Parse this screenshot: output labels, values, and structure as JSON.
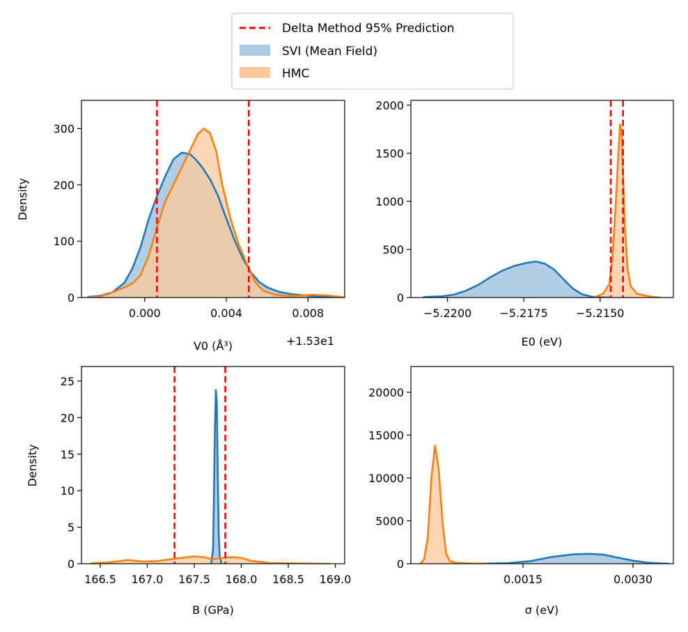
{
  "legend": {
    "placement": "top-center",
    "entries": [
      {
        "label": "Delta Method 95% Prediction",
        "color": "#ff0000",
        "style": "dashed-line"
      },
      {
        "label": "SVI (Mean Field)",
        "color": "#1f77b4",
        "style": "patch"
      },
      {
        "label": "HMC",
        "color": "#ff7f0e",
        "style": "patch"
      }
    ]
  },
  "colors": {
    "svi_line": "#1f77b4",
    "svi_fill": "#a9c9e3",
    "hmc_line": "#ff7f0e",
    "hmc_fill": "#ffc99b",
    "overlap_fill": "#c9ac8c",
    "delta": "#ff0000"
  },
  "chart_data": [
    {
      "type": "area",
      "id": "v0",
      "xlabel": "V0 (Å³)",
      "ylabel": "Density",
      "offset_text": "+1.53e1",
      "xlim": [
        -0.0031,
        0.0098
      ],
      "ylim": [
        0,
        350
      ],
      "xticks": [
        0.0,
        0.004,
        0.008
      ],
      "xtick_labels": [
        "0.000",
        "0.004",
        "0.008"
      ],
      "yticks": [
        0,
        100,
        200,
        300
      ],
      "ytick_labels": [
        "0",
        "100",
        "200",
        "300"
      ],
      "delta_lines": [
        0.0006,
        0.0051
      ],
      "series": [
        {
          "name": "SVI (Mean Field)",
          "x": [
            -0.0028,
            -0.0022,
            -0.0016,
            -0.001,
            -0.0006,
            -0.0002,
            0.0002,
            0.0006,
            0.001,
            0.0014,
            0.0018,
            0.0022,
            0.0025,
            0.0028,
            0.0032,
            0.0036,
            0.004,
            0.0044,
            0.0048,
            0.0052,
            0.0056,
            0.006,
            0.0066,
            0.0072,
            0.0078,
            0.0084,
            0.009,
            0.0096
          ],
          "y": [
            1,
            3,
            9,
            26,
            52,
            90,
            140,
            180,
            215,
            245,
            257,
            255,
            245,
            232,
            210,
            180,
            140,
            102,
            70,
            45,
            28,
            18,
            10,
            6,
            4,
            2,
            1,
            0
          ]
        },
        {
          "name": "HMC",
          "x": [
            -0.0028,
            -0.0022,
            -0.0018,
            -0.0014,
            -0.001,
            -0.0006,
            -0.0002,
            0.0002,
            0.0006,
            0.001,
            0.0014,
            0.0018,
            0.0022,
            0.0026,
            0.0029,
            0.0032,
            0.0035,
            0.0038,
            0.0042,
            0.0046,
            0.005,
            0.0054,
            0.0058,
            0.0064,
            0.007,
            0.0076,
            0.0082,
            0.0088,
            0.0094,
            0.0098
          ],
          "y": [
            0,
            2,
            6,
            12,
            18,
            25,
            40,
            75,
            125,
            170,
            200,
            230,
            260,
            290,
            300,
            292,
            260,
            200,
            140,
            95,
            60,
            28,
            12,
            5,
            3,
            3,
            5,
            4,
            2,
            0
          ]
        }
      ]
    },
    {
      "type": "area",
      "id": "e0",
      "xlabel": "E0 (eV)",
      "ylabel": "",
      "xlim": [
        -5.2212,
        -5.2126
      ],
      "ylim": [
        0,
        2050
      ],
      "xticks": [
        -5.22,
        -5.2175,
        -5.215
      ],
      "xtick_labels": [
        "−5.2200",
        "−5.2175",
        "−5.2150"
      ],
      "yticks": [
        0,
        500,
        1000,
        1500,
        2000
      ],
      "ytick_labels": [
        "0",
        "500",
        "1000",
        "1500",
        "2000"
      ],
      "delta_lines": [
        -5.21465,
        -5.21425
      ],
      "series": [
        {
          "name": "SVI (Mean Field)",
          "x": [
            -5.2208,
            -5.2202,
            -5.2198,
            -5.2194,
            -5.219,
            -5.2186,
            -5.2182,
            -5.2178,
            -5.2174,
            -5.2171,
            -5.2168,
            -5.2165,
            -5.2162,
            -5.2159,
            -5.2156,
            -5.2153,
            -5.215,
            -5.2147
          ],
          "y": [
            5,
            12,
            30,
            70,
            130,
            210,
            280,
            330,
            360,
            375,
            350,
            290,
            190,
            95,
            35,
            10,
            2,
            0
          ]
        },
        {
          "name": "HMC",
          "x": [
            -5.2152,
            -5.2149,
            -5.2147,
            -5.2146,
            -5.2145,
            -5.2144,
            -5.21435,
            -5.2143,
            -5.21425,
            -5.2142,
            -5.2141,
            -5.214,
            -5.2138,
            -5.2136,
            -5.2133,
            -5.213
          ],
          "y": [
            0,
            40,
            140,
            400,
            900,
            1500,
            1800,
            1750,
            1300,
            800,
            300,
            120,
            40,
            25,
            8,
            0
          ]
        }
      ]
    },
    {
      "type": "area",
      "id": "b",
      "xlabel": "B (GPa)",
      "ylabel": "Density",
      "xlim": [
        166.3,
        169.1
      ],
      "ylim": [
        0,
        27
      ],
      "xticks": [
        166.5,
        167.0,
        167.5,
        168.0,
        168.5,
        169.0
      ],
      "xtick_labels": [
        "166.5",
        "167.0",
        "167.5",
        "168.0",
        "168.5",
        "169.0"
      ],
      "yticks": [
        0,
        5,
        10,
        15,
        20,
        25
      ],
      "ytick_labels": [
        "0",
        "5",
        "10",
        "15",
        "20",
        "25"
      ],
      "delta_lines": [
        167.29,
        167.83
      ],
      "series": [
        {
          "name": "SVI (Mean Field)",
          "x": [
            167.68,
            167.7,
            167.71,
            167.72,
            167.73,
            167.74,
            167.75,
            167.76,
            167.77,
            167.79
          ],
          "y": [
            0,
            2,
            10,
            19,
            23.8,
            22,
            12,
            4,
            1,
            0
          ]
        },
        {
          "name": "HMC",
          "x": [
            166.4,
            166.6,
            166.8,
            166.95,
            167.1,
            167.3,
            167.5,
            167.6,
            167.7,
            167.8,
            167.9,
            168.0,
            168.1,
            168.3,
            168.5,
            168.7,
            168.95
          ],
          "y": [
            0.05,
            0.2,
            0.5,
            0.3,
            0.35,
            0.7,
            1.0,
            0.9,
            0.6,
            0.8,
            0.9,
            0.8,
            0.4,
            0.1,
            0.05,
            0.02,
            0.0
          ]
        }
      ]
    },
    {
      "type": "area",
      "id": "sigma",
      "xlabel": "σ (eV)",
      "ylabel": "",
      "xlim": [
        -3e-05,
        0.00355
      ],
      "ylim": [
        0,
        23000
      ],
      "xticks": [
        0.0015,
        0.003
      ],
      "xtick_labels": [
        "0.0015",
        "0.0030"
      ],
      "yticks": [
        0,
        5000,
        10000,
        15000,
        20000
      ],
      "ytick_labels": [
        "0",
        "5000",
        "10000",
        "15000",
        "20000"
      ],
      "delta_lines": [],
      "series": [
        {
          "name": "SVI (Mean Field)",
          "x": [
            0.0006,
            0.001,
            0.0013,
            0.0016,
            0.0019,
            0.0022,
            0.0024,
            0.0026,
            0.0028,
            0.003,
            0.0032,
            0.0034,
            0.0035
          ],
          "y": [
            0,
            20,
            80,
            300,
            800,
            1100,
            1150,
            1050,
            700,
            350,
            120,
            30,
            0
          ]
        },
        {
          "name": "HMC",
          "x": [
            0.0001,
            0.00015,
            0.0002,
            0.00025,
            0.0003,
            0.00035,
            0.0004,
            0.00045,
            0.0005,
            0.0006,
            0.0008,
            0.001
          ],
          "y": [
            0,
            500,
            3000,
            10000,
            13800,
            11000,
            5000,
            1200,
            300,
            100,
            30,
            0
          ]
        }
      ]
    }
  ]
}
